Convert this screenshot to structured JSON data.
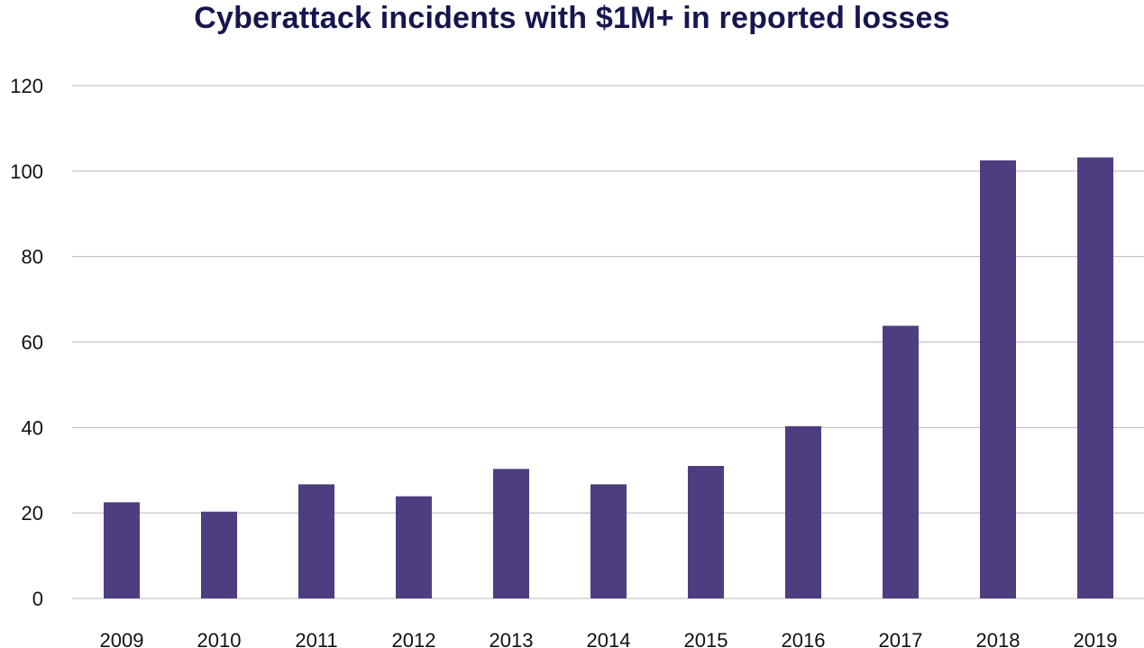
{
  "chart_data": {
    "type": "bar",
    "title": "Cyberattack incidents with $1M+ in reported losses",
    "categories": [
      "2009",
      "2010",
      "2011",
      "2012",
      "2013",
      "2014",
      "2015",
      "2016",
      "2017",
      "2018",
      "2019"
    ],
    "values": [
      22.5,
      20.3,
      26.7,
      23.9,
      30.3,
      26.7,
      31.0,
      40.3,
      63.8,
      102.5,
      103.2
    ],
    "ylim": [
      0,
      120
    ],
    "yticks": [
      "0",
      "20",
      "40",
      "60",
      "80",
      "100",
      "120"
    ],
    "xlabel": "",
    "ylabel": "",
    "grid": true,
    "bar_color": "#4f3d82",
    "grid_color": "#b8b8b8",
    "title_color": "#16164f"
  }
}
